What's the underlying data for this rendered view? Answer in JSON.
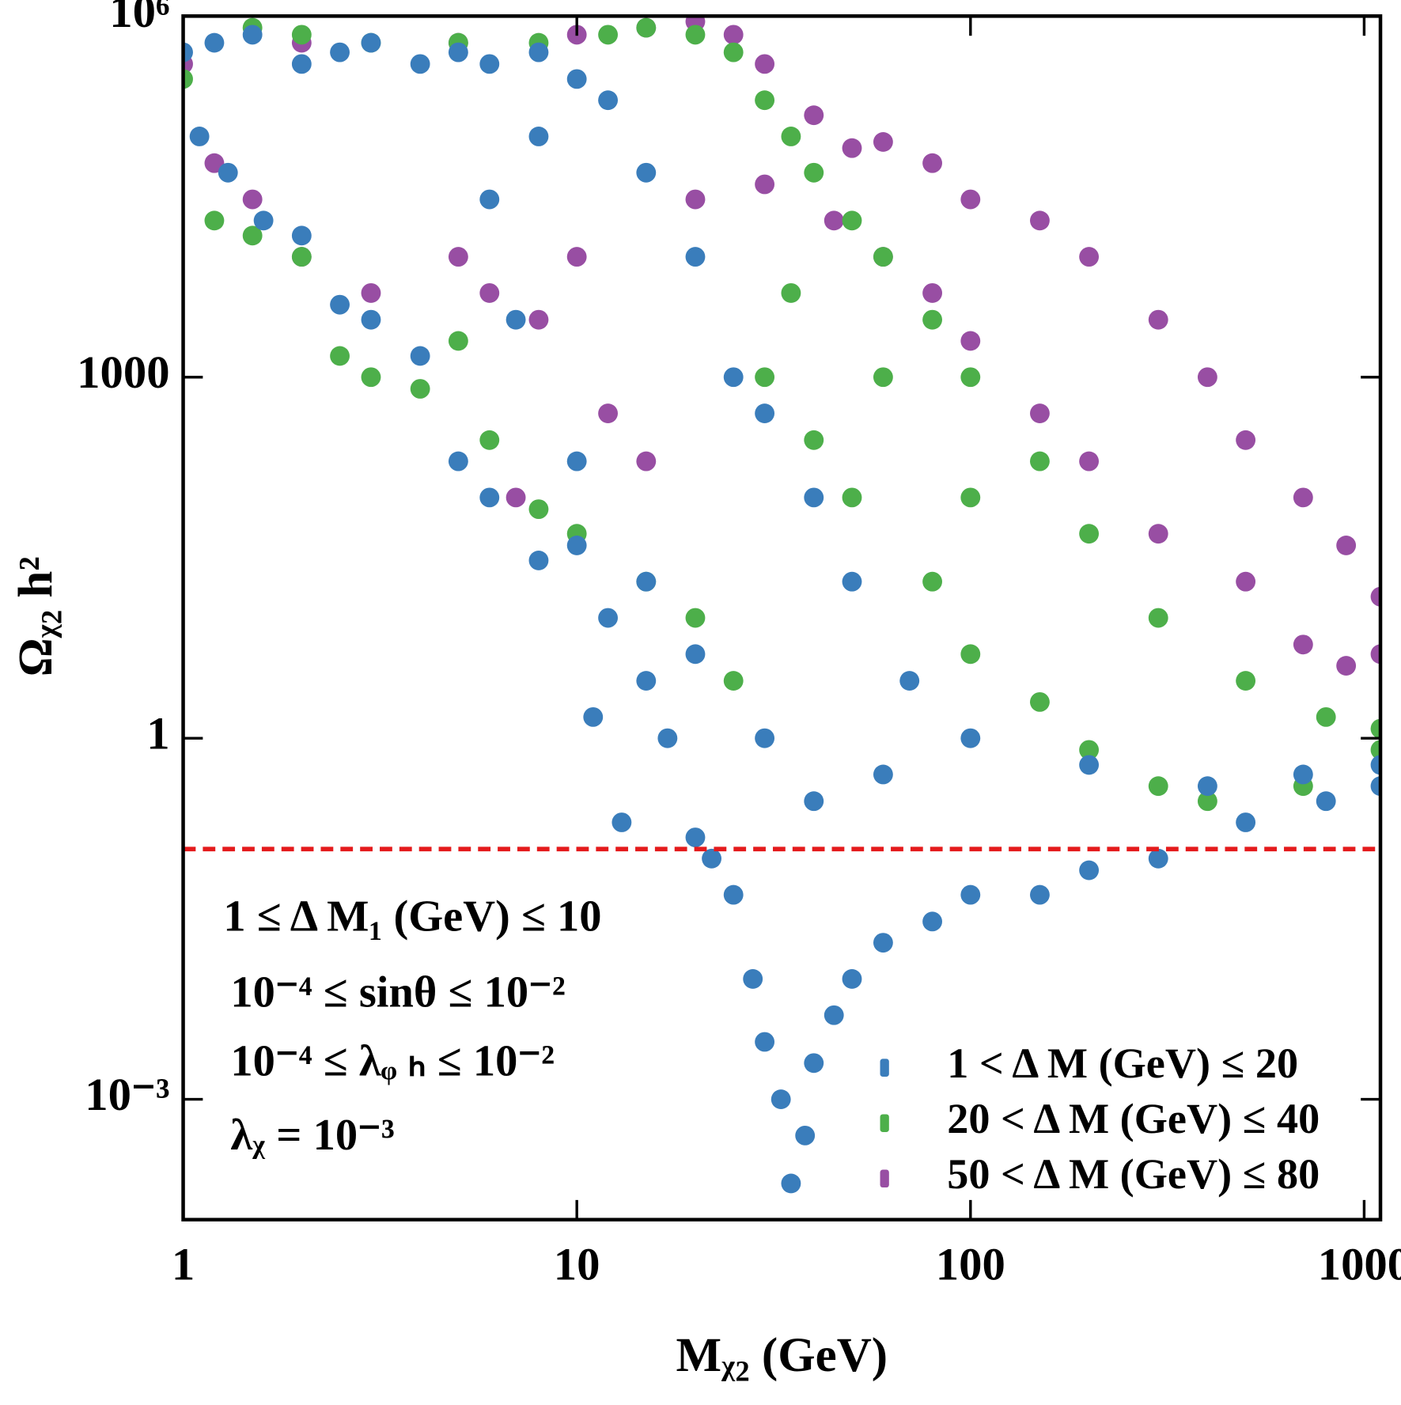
{
  "chart_data": {
    "type": "scatter",
    "xlabel": "Mᵪ₂ (GeV)",
    "ylabel": "Ωᵪ₂ h²",
    "xscale": "log",
    "yscale": "log",
    "xlim": [
      1,
      1100
    ],
    "ylim": [
      0.0001,
      1000000
    ],
    "xticks": [
      1,
      10,
      100,
      1000
    ],
    "yticks": [
      {
        "value": 0.001,
        "label": "10⁻³"
      },
      1,
      1000,
      {
        "value": 1000000,
        "label": "10⁶"
      }
    ],
    "hline": 0.12,
    "hline_color": "#e41a1c",
    "legend": "lower right",
    "annotations": [
      "1 ≤ Δ M₁ (GeV) ≤ 10",
      "10⁻⁴ ≤ sinθ ≤ 10⁻²",
      "10⁻⁴ ≤ λᵩ ₕ ≤ 10⁻²",
      "λᵪ = 10⁻³"
    ],
    "series": [
      {
        "name": "1 < Δ M (GeV) ≤ 20",
        "color": "#3a7dbb",
        "x": [
          1,
          1.2,
          1.5,
          2,
          2.5,
          3,
          4,
          5,
          6,
          8,
          10,
          1.1,
          1.3,
          1.6,
          2,
          2.5,
          3,
          4,
          5,
          6,
          8,
          10,
          12,
          11,
          13,
          15,
          17,
          20,
          22,
          25,
          28,
          30,
          33,
          35,
          38,
          40,
          45,
          50,
          60,
          80,
          100,
          150,
          200,
          300,
          500,
          800,
          1100,
          1100,
          700,
          400,
          200,
          100,
          70,
          50,
          40,
          30,
          25,
          20,
          15,
          12,
          8,
          6,
          30,
          40,
          60,
          20,
          15,
          10,
          7
        ],
        "values": [
          500000,
          600000,
          700000,
          400000,
          500000,
          600000,
          400000,
          500000,
          400000,
          500000,
          300000,
          100000,
          50000,
          20000,
          15000,
          4000,
          3000,
          1500,
          200,
          100,
          30,
          40,
          10,
          1.5,
          0.2,
          3,
          1,
          0.15,
          0.1,
          0.05,
          0.01,
          0.003,
          0.001,
          0.0002,
          0.0005,
          0.002,
          0.005,
          0.01,
          0.02,
          0.03,
          0.05,
          0.05,
          0.08,
          0.1,
          0.2,
          0.3,
          0.4,
          0.6,
          0.5,
          0.4,
          0.6,
          1,
          3,
          20,
          100,
          500,
          1000,
          10000,
          50000,
          200000,
          100000,
          30000,
          1,
          0.3,
          0.5,
          5,
          20,
          200,
          3000
        ]
      },
      {
        "name": "20 < Δ M (GeV) ≤ 40",
        "color": "#4daf4a",
        "x": [
          1,
          1.5,
          2,
          3,
          5,
          8,
          12,
          15,
          20,
          25,
          30,
          35,
          40,
          50,
          60,
          80,
          100,
          150,
          200,
          300,
          500,
          800,
          1100,
          1100,
          700,
          400,
          300,
          200,
          150,
          100,
          80,
          50,
          40,
          30,
          25,
          20,
          15,
          10,
          8,
          6,
          5,
          4,
          3,
          2.5,
          2,
          1.5,
          1.2,
          60,
          100,
          35
        ],
        "values": [
          300000,
          800000,
          700000,
          600000,
          600000,
          600000,
          700000,
          800000,
          700000,
          500000,
          200000,
          100000,
          50000,
          20000,
          10000,
          3000,
          1000,
          200,
          50,
          10,
          3,
          1.5,
          1.2,
          0.8,
          0.4,
          0.3,
          0.4,
          0.8,
          2,
          5,
          20,
          100,
          300,
          1000,
          3,
          10,
          20,
          50,
          80,
          300,
          2000,
          800,
          1000,
          1500,
          10000,
          15000,
          20000,
          1000,
          100,
          5000
        ]
      },
      {
        "name": "50 < Δ M (GeV) ≤ 80",
        "color": "#984ea3",
        "x": [
          1,
          2,
          5,
          10,
          15,
          20,
          25,
          30,
          40,
          50,
          60,
          80,
          100,
          150,
          200,
          300,
          400,
          500,
          700,
          900,
          1100,
          1100,
          900,
          700,
          500,
          300,
          200,
          150,
          100,
          80,
          60,
          45,
          30,
          20,
          10,
          8,
          6,
          5,
          3,
          2,
          1.5,
          1.2,
          15,
          12,
          7
        ],
        "values": [
          400000,
          600000,
          600000,
          700000,
          800000,
          900000,
          700000,
          400000,
          150000,
          80000,
          90000,
          60000,
          30000,
          20000,
          10000,
          3000,
          1000,
          300,
          100,
          40,
          15,
          5,
          4,
          6,
          20,
          50,
          200,
          500,
          2000,
          5000,
          10000,
          20000,
          40000,
          30000,
          10000,
          3000,
          5000,
          10000,
          5000,
          10000,
          30000,
          60000,
          200,
          500,
          100
        ]
      }
    ]
  }
}
